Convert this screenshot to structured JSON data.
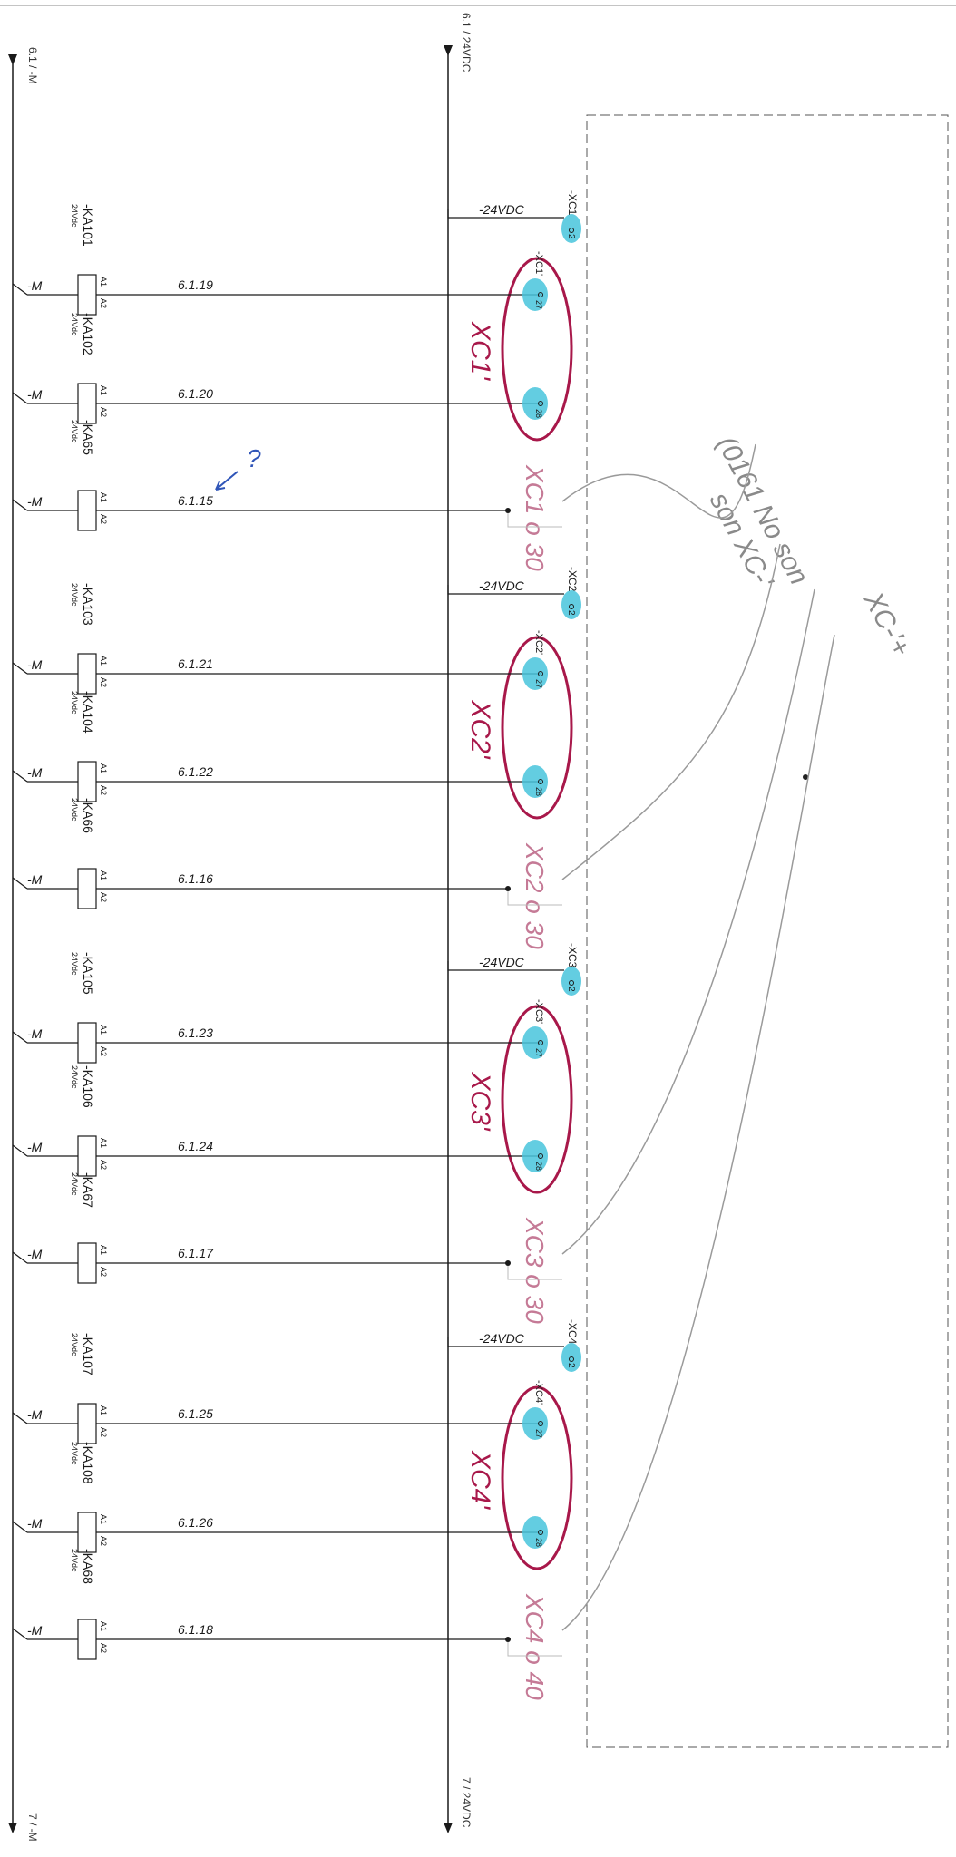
{
  "rails": {
    "left_top": "6.1 / -M",
    "left_bottom": "7 / -M",
    "right_top": "6.1 / 24VDC",
    "right_bottom": "7 / 24VDC"
  },
  "supply_label": "-24VDC",
  "m_label": "-M",
  "coil_rating": "24Vdc",
  "pin_a1": "A1",
  "pin_a2": "A2",
  "groups": [
    {
      "supply_terminal": "-XC1",
      "supply_pin": "2",
      "oval_label": "XC1'",
      "spare_label": "XC1 o 30",
      "coils": [
        {
          "tag": "-KA101",
          "ref": "6.1.19",
          "terminal": "-XC1'",
          "pin": "27"
        },
        {
          "tag": "-KA102",
          "ref": "6.1.20",
          "terminal": "",
          "pin": "28"
        },
        {
          "tag": "-KA65",
          "ref": "6.1.15",
          "terminal": "",
          "pin": ""
        }
      ]
    },
    {
      "supply_terminal": "-XC2",
      "supply_pin": "2",
      "oval_label": "XC2'",
      "spare_label": "XC2 o 30",
      "coils": [
        {
          "tag": "-KA103",
          "ref": "6.1.21",
          "terminal": "-XC2'",
          "pin": "27"
        },
        {
          "tag": "-KA104",
          "ref": "6.1.22",
          "terminal": "",
          "pin": "28"
        },
        {
          "tag": "-KA66",
          "ref": "6.1.16",
          "terminal": "",
          "pin": ""
        }
      ]
    },
    {
      "supply_terminal": "-XC3",
      "supply_pin": "2",
      "oval_label": "XC3'",
      "spare_label": "XC3 o 30",
      "coils": [
        {
          "tag": "-KA105",
          "ref": "6.1.23",
          "terminal": "-XC3'",
          "pin": "27"
        },
        {
          "tag": "-KA106",
          "ref": "6.1.24",
          "terminal": "",
          "pin": "28"
        },
        {
          "tag": "-KA67",
          "ref": "6.1.17",
          "terminal": "",
          "pin": ""
        }
      ]
    },
    {
      "supply_terminal": "-XC4",
      "supply_pin": "2",
      "oval_label": "XC4'",
      "spare_label": "XC4 o 40",
      "coils": [
        {
          "tag": "-KA107",
          "ref": "6.1.25",
          "terminal": "-XC4'",
          "pin": "27"
        },
        {
          "tag": "-KA108",
          "ref": "6.1.26",
          "terminal": "",
          "pin": "28"
        },
        {
          "tag": "-KA68",
          "ref": "6.1.18",
          "terminal": "",
          "pin": ""
        }
      ]
    }
  ],
  "annotations": {
    "question": "?",
    "note_line1": "(0161 No son",
    "note_line2": "son XC-'",
    "note_line3": "XC-'+"
  },
  "colors": {
    "line": "#1a1a1a",
    "ink_red": "#a8184a",
    "ink_red_light": "#c57a96",
    "highlight": "#48c4dc",
    "pencil": "#9a9a9a",
    "pen_blue": "#2f55b8",
    "frame": "#555555"
  }
}
